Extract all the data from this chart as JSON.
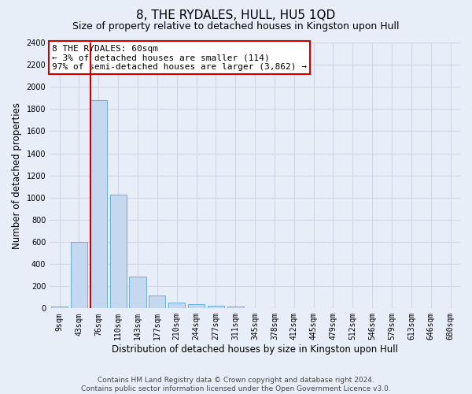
{
  "title": "8, THE RYDALES, HULL, HU5 1QD",
  "subtitle": "Size of property relative to detached houses in Kingston upon Hull",
  "xlabel": "Distribution of detached houses by size in Kingston upon Hull",
  "ylabel": "Number of detached properties",
  "footnote1": "Contains HM Land Registry data © Crown copyright and database right 2024.",
  "footnote2": "Contains public sector information licensed under the Open Government Licence v3.0.",
  "annotation_line1": "8 THE RYDALES: 60sqm",
  "annotation_line2": "← 3% of detached houses are smaller (114)",
  "annotation_line3": "97% of semi-detached houses are larger (3,862) →",
  "bar_labels": [
    "9sqm",
    "43sqm",
    "76sqm",
    "110sqm",
    "143sqm",
    "177sqm",
    "210sqm",
    "244sqm",
    "277sqm",
    "311sqm",
    "345sqm",
    "378sqm",
    "412sqm",
    "445sqm",
    "479sqm",
    "512sqm",
    "546sqm",
    "579sqm",
    "613sqm",
    "646sqm",
    "680sqm"
  ],
  "bar_values": [
    20,
    600,
    1880,
    1030,
    290,
    115,
    50,
    35,
    25,
    20,
    5,
    5,
    5,
    3,
    2,
    2,
    1,
    1,
    1,
    1,
    1
  ],
  "bar_color": "#c5d8f0",
  "bar_edge_color": "#6baed6",
  "red_line_index": 2,
  "ylim": [
    0,
    2400
  ],
  "yticks": [
    0,
    200,
    400,
    600,
    800,
    1000,
    1200,
    1400,
    1600,
    1800,
    2000,
    2200,
    2400
  ],
  "bg_color": "#e8eef8",
  "grid_color": "#d0d8e8",
  "annotation_box_color": "#ffffff",
  "annotation_box_edge": "#cc0000",
  "red_line_color": "#cc0000",
  "title_fontsize": 11,
  "subtitle_fontsize": 9,
  "tick_fontsize": 7,
  "ylabel_fontsize": 8.5,
  "xlabel_fontsize": 8.5,
  "annotation_fontsize": 8,
  "footnote_fontsize": 6.5
}
